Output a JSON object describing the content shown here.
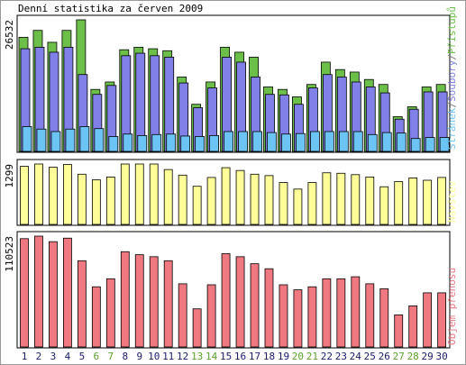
{
  "chart_data": {
    "type": "bar",
    "title": "Denní statistika za červen 2009",
    "categories": [
      "1",
      "2",
      "3",
      "4",
      "5",
      "6",
      "7",
      "8",
      "9",
      "10",
      "11",
      "12",
      "13",
      "14",
      "15",
      "16",
      "17",
      "18",
      "19",
      "20",
      "21",
      "22",
      "23",
      "24",
      "25",
      "26",
      "27",
      "28",
      "29",
      "30"
    ],
    "category_colors": [
      "#1a1a6e",
      "#1a1a6e",
      "#1a1a6e",
      "#1a1a6e",
      "#1a1a6e",
      "#5aa02c",
      "#5aa02c",
      "#1a1a6e",
      "#1a1a6e",
      "#1a1a6e",
      "#1a1a6e",
      "#1a1a6e",
      "#5aa02c",
      "#5aa02c",
      "#1a1a6e",
      "#1a1a6e",
      "#1a1a6e",
      "#1a1a6e",
      "#1a1a6e",
      "#5aa02c",
      "#5aa02c",
      "#1a1a6e",
      "#1a1a6e",
      "#1a1a6e",
      "#1a1a6e",
      "#1a1a6e",
      "#5aa02c",
      "#5aa02c",
      "#1a1a6e",
      "#1a1a6e"
    ],
    "legend_separator": "/",
    "panels": [
      {
        "ylim": [
          0,
          26532
        ],
        "yticks": [
          26532
        ],
        "series": [
          {
            "name": "Přístupů",
            "color": "#6cc04a",
            "values": [
              23000,
              24400,
              22000,
              24400,
              26532,
              12500,
              14000,
              20500,
              21000,
              20700,
              20300,
              15000,
              9500,
              14000,
              21000,
              20000,
              19000,
              13000,
              12500,
              11000,
              13500,
              18000,
              16500,
              16000,
              14500,
              13500,
              7000,
              9000,
              13000,
              13500
            ]
          },
          {
            "name": "Soubory",
            "color": "#8080e8",
            "values": [
              20700,
              21000,
              20000,
              21000,
              15500,
              11500,
              13300,
              19300,
              19800,
              19300,
              19000,
              13800,
              8800,
              12800,
              19000,
              18000,
              15000,
              11500,
              11400,
              9500,
              12800,
              15500,
              15000,
              14000,
              13000,
              11800,
              6500,
              8500,
              12000,
              12000
            ]
          },
          {
            "name": "Stránek",
            "color": "#6cc4f4",
            "values": [
              5000,
              4500,
              4000,
              4500,
              5000,
              4600,
              3000,
              3500,
              3200,
              3400,
              3500,
              3100,
              3000,
              3200,
              4000,
              4000,
              4000,
              3800,
              3500,
              3600,
              4000,
              4000,
              4000,
              4000,
              3400,
              3800,
              3700,
              2600,
              2800,
              2800
            ]
          }
        ]
      },
      {
        "ylim": [
          0,
          1299
        ],
        "yticks": [
          1299
        ],
        "series": [
          {
            "name": "Návštěv",
            "color": "#ffff99",
            "values": [
              1250,
              1299,
              1230,
              1290,
              1080,
              960,
              1020,
              1299,
              1299,
              1299,
              1180,
              1060,
              820,
              1010,
              1220,
              1160,
              1080,
              1050,
              900,
              760,
              900,
              1110,
              1100,
              1070,
              1020,
              810,
              920,
              1000,
              950,
              1010
            ]
          }
        ]
      },
      {
        "ylim": [
          0,
          110523
        ],
        "yticks": [
          110523
        ],
        "series": [
          {
            "name": "Objem přenosu",
            "color": "#f07880",
            "values": [
              108000,
              110523,
              105000,
              108500,
              86000,
              60000,
              68000,
              95000,
              92000,
              90000,
              86000,
              63000,
              38000,
              62000,
              93000,
              90000,
              83000,
              78000,
              62000,
              57000,
              60000,
              68000,
              68000,
              70000,
              63000,
              58000,
              32000,
              41000,
              54000,
              54000
            ]
          }
        ]
      }
    ]
  }
}
